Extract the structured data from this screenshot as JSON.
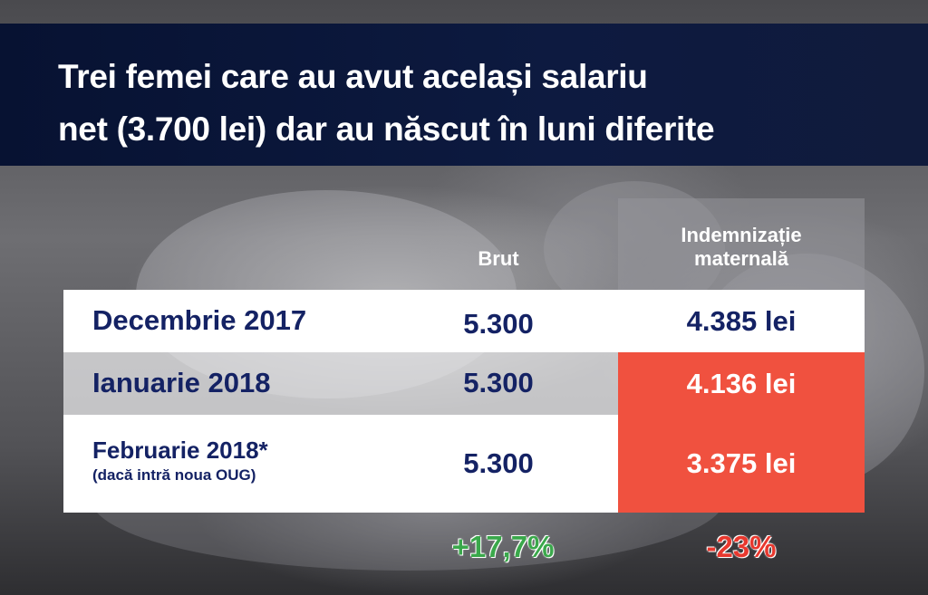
{
  "title": {
    "line1": "Trei femei care au avut același salariu",
    "line2": "net (3.700 lei) dar au născut în luni diferite"
  },
  "columns": {
    "brut": "Brut",
    "indemnizatie_line1": "Indemnizație",
    "indemnizatie_line2": "maternală"
  },
  "rows": [
    {
      "month": "Decembrie 2017",
      "brut": "5.300",
      "indemnizatie": "4.385 lei",
      "highlight": false
    },
    {
      "month": "Ianuarie 2018",
      "brut": "5.300",
      "indemnizatie": "4.136 lei",
      "highlight": true
    },
    {
      "month": "Februarie 2018*",
      "note": "(dacă intră noua OUG)",
      "brut": "5.300",
      "indemnizatie": "3.375 lei",
      "highlight": true
    }
  ],
  "changes": {
    "brut": "+17,7%",
    "indemnizatie": "-23%"
  },
  "colors": {
    "header_bg": "#0d1a40",
    "text_navy": "#142264",
    "highlight_red": "#f0513f",
    "positive_green": "#3aa84b",
    "negative_red": "#e8382e"
  }
}
